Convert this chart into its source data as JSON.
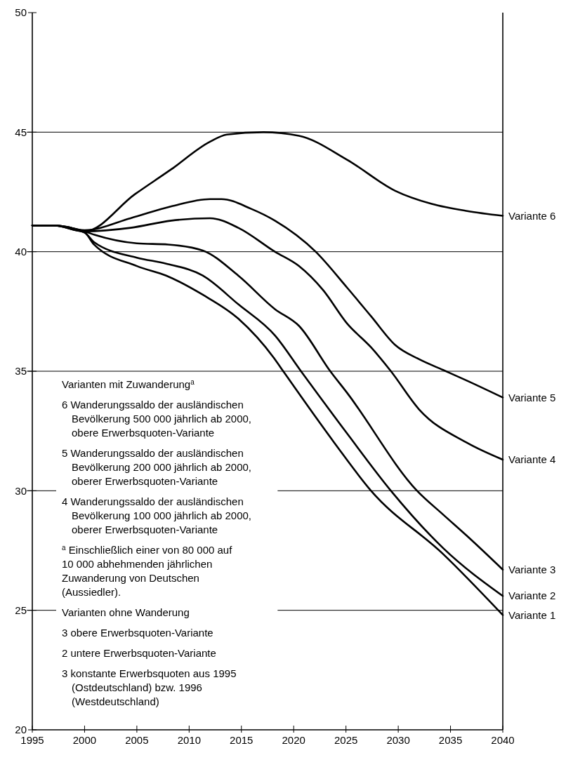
{
  "chart_data": {
    "type": "line",
    "xlim": [
      1995,
      2040
    ],
    "xticks": [
      1995,
      2000,
      2005,
      2010,
      2015,
      2020,
      2025,
      2030,
      2035,
      2040
    ],
    "ylim": [
      20,
      50
    ],
    "yticks": [
      20,
      25,
      30,
      35,
      40,
      45,
      50
    ],
    "grid": "y",
    "legend": false,
    "line_style": "solid",
    "marker": "none",
    "series": [
      {
        "name": "Variante 6",
        "color": "#000000",
        "x": [
          1995,
          1997,
          2000,
          2004.8,
          2008.3,
          2012,
          2013.6,
          2017.1,
          2020.5,
          2025.1,
          2029.7,
          2033.2,
          2036.6,
          2040
        ],
        "values": [
          41.1,
          41.1,
          40.85,
          42.4,
          43.45,
          44.6,
          44.9,
          45.0,
          44.85,
          43.85,
          42.55,
          42.0,
          41.7,
          41.5
        ]
      },
      {
        "name": "Variante 5",
        "color": "#000000",
        "x": [
          1995,
          1997,
          2000,
          2004.4,
          2008.3,
          2012,
          2013.1,
          2015.9,
          2018.2,
          2022.1,
          2025.1,
          2027.4,
          2029.7,
          2032,
          2034.3,
          2036.6,
          2040
        ],
        "values": [
          41.1,
          41.1,
          40.9,
          41.4,
          41.9,
          42.2,
          42.2,
          41.8,
          41.3,
          40.0,
          38.5,
          37.3,
          36.1,
          35.5,
          35.05,
          34.6,
          33.9
        ]
      },
      {
        "name": "Variante 4",
        "color": "#000000",
        "x": [
          1995,
          1997,
          2000,
          2004.4,
          2008.3,
          2012,
          2014.7,
          2018.2,
          2020.5,
          2022.8,
          2025.1,
          2027.4,
          2029.3,
          2032,
          2036.6,
          2040
        ],
        "values": [
          41.1,
          41.1,
          40.85,
          41.0,
          41.3,
          41.4,
          41.0,
          40.0,
          39.4,
          38.4,
          37.0,
          36.0,
          35.0,
          33.4,
          32.0,
          31.3
        ]
      },
      {
        "name": "Variante 3",
        "color": "#000000",
        "x": [
          1995,
          1997,
          2000,
          2001,
          2005,
          2008,
          2011.3,
          2014.7,
          2018.2,
          2020.5,
          2023.5,
          2025.1,
          2031.8,
          2034.3,
          2036.6,
          2040
        ],
        "values": [
          41.1,
          41.1,
          40.85,
          40.7,
          40.35,
          40.3,
          40.05,
          39.0,
          37.6,
          36.9,
          35.0,
          34.1,
          30.0,
          29.0,
          28.1,
          26.7
        ]
      },
      {
        "name": "Variante 2",
        "color": "#000000",
        "x": [
          1995,
          1997,
          2000,
          2000.9,
          2005,
          2007.8,
          2011.3,
          2014.7,
          2018.2,
          2020.7,
          2025.1,
          2029.3,
          2034.3,
          2040
        ],
        "values": [
          41.1,
          41.1,
          40.8,
          40.4,
          39.75,
          39.5,
          39.0,
          37.8,
          36.5,
          35.0,
          32.4,
          30.0,
          27.6,
          25.6
        ]
      },
      {
        "name": "Variante 1",
        "color": "#000000",
        "x": [
          1995,
          1997,
          2000,
          2000.9,
          2005,
          2007.8,
          2011.3,
          2014.7,
          2018.2,
          2019,
          2023.9,
          2027.4,
          2034.3,
          2040
        ],
        "values": [
          41.1,
          41.1,
          40.8,
          40.3,
          39.4,
          39.0,
          38.2,
          37.2,
          35.5,
          35.0,
          32.0,
          30.0,
          27.35,
          24.8
        ]
      }
    ],
    "annotations": [
      "Varianten mit Zuwanderung$^{a}$",
      "6 Wanderungssaldo der ausländischen Bevölkerung 500 000 jährlich ab 2000, obere Erwerbsquoten-Variante",
      "5 Wanderungssaldo der ausländischen Bevölkerung 200 000 jährlich ab 2000, oberer Erwerbsquoten-Variante",
      "4 Wanderungssaldo der ausländischen Bevölkerung 100 000 jährlich ab 2000, oberer Erwerbsquoten-Variante",
      "$^{a}$ Einschließlich einer von 80 000 auf 10 000 abhehmenden jährlichen Zuwanderung von Deutschen (Aussiedler).",
      "Varianten ohne Wanderung",
      "3 obere Erwerbsquoten-Variante",
      "2 untere Erwerbsquoten-Variante",
      "3 konstante Erwerbsquoten aus 1995 (Ostdeutschland) bzw. 1996 (Westdeutschland)"
    ]
  }
}
